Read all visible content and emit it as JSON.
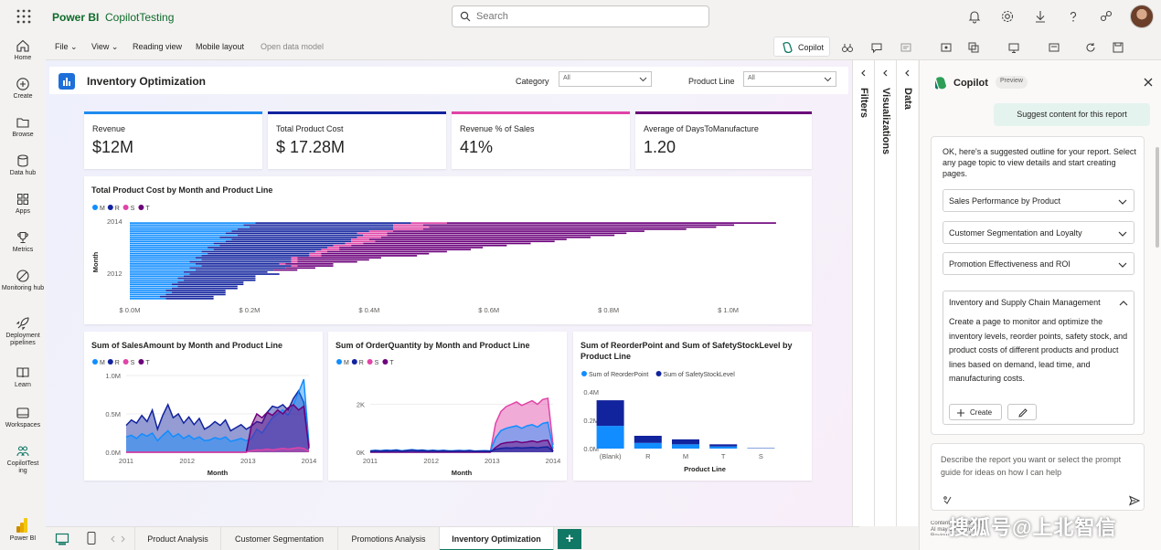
{
  "app": {
    "brand": "Power BI",
    "workspace": "CopilotTesting"
  },
  "search": {
    "placeholder": "Search"
  },
  "top_icons": [
    "bell-icon",
    "gear-icon",
    "download-icon",
    "help-icon",
    "share-icon"
  ],
  "left_rail": [
    {
      "label": "Home",
      "icon": "home-icon"
    },
    {
      "label": "Create",
      "icon": "plus-circle-icon"
    },
    {
      "label": "Browse",
      "icon": "folder-icon"
    },
    {
      "label": "Data hub",
      "icon": "database-icon"
    },
    {
      "label": "Apps",
      "icon": "apps-icon"
    },
    {
      "label": "Metrics",
      "icon": "trophy-icon"
    },
    {
      "label": "Monitoring hub",
      "icon": "monitor-icon"
    },
    {
      "label": "Deployment pipelines",
      "icon": "rocket-icon"
    },
    {
      "label": "Learn",
      "icon": "book-icon"
    },
    {
      "label": "Workspaces",
      "icon": "workspaces-icon"
    },
    {
      "label": "CopilotTesting",
      "icon": "people-icon"
    },
    {
      "label": "Power BI",
      "icon": "powerbi-icon"
    }
  ],
  "ribbon": {
    "file": "File",
    "view": "View",
    "reading_view": "Reading view",
    "mobile_layout": "Mobile layout",
    "open_data_model": "Open data model",
    "copilot": "Copilot"
  },
  "report": {
    "title": "Inventory Optimization",
    "filters": [
      {
        "label": "Category",
        "value": "All"
      },
      {
        "label": "Product Line",
        "value": "All"
      }
    ]
  },
  "cards": [
    {
      "label": "Revenue",
      "value": "$12M",
      "color": "#1e8bf0"
    },
    {
      "label": "Total Product Cost",
      "value": "$ 17.28M",
      "color": "#12239e"
    },
    {
      "label": "Revenue % of Sales",
      "value": "41%",
      "color": "#e044a7"
    },
    {
      "label": "Average of DaysToManufacture",
      "value": "1.20",
      "color": "#6b007b"
    }
  ],
  "colors": {
    "M": "#118dff",
    "R": "#12239e",
    "S": "#e66c37",
    "T": "#6b007b",
    "S_pink": "#e044a7",
    "accent": "#117865"
  },
  "chart_data": [
    {
      "type": "bar",
      "title": "Total Product Cost by Month and Product Line",
      "orientation": "horizontal-stacked",
      "legend": [
        "M",
        "R",
        "S",
        "T"
      ],
      "legend_colors": [
        "#118dff",
        "#12239e",
        "#e044a7",
        "#6b007b"
      ],
      "ylabel": "Month",
      "y_ticks": [
        "2014",
        "2012"
      ],
      "x_ticks": [
        "$ 0.0M",
        "$ 0.2M",
        "$ 0.4M",
        "$ 0.6M",
        "$ 0.8M",
        "$ 1.0M"
      ],
      "xlim": [
        0,
        1.1
      ],
      "note": "values in $M, top row = latest month",
      "series": [
        {
          "name": "M",
          "values": [
            0.21,
            0.19,
            0.2,
            0.18,
            0.17,
            0.16,
            0.18,
            0.15,
            0.17,
            0.16,
            0.14,
            0.15,
            0.13,
            0.14,
            0.12,
            0.13,
            0.12,
            0.11,
            0.12,
            0.1,
            0.11,
            0.12,
            0.1,
            0.11,
            0.09,
            0.1,
            0.09,
            0.08,
            0.09,
            0.08,
            0.07,
            0.08,
            0.07,
            0.06,
            0.07,
            0.06,
            0.05,
            0.06
          ]
        },
        {
          "name": "R",
          "values": [
            0.26,
            0.25,
            0.24,
            0.26,
            0.23,
            0.22,
            0.21,
            0.23,
            0.2,
            0.21,
            0.22,
            0.19,
            0.2,
            0.18,
            0.19,
            0.17,
            0.18,
            0.16,
            0.15,
            0.17,
            0.14,
            0.15,
            0.16,
            0.13,
            0.14,
            0.15,
            0.12,
            0.13,
            0.12,
            0.11,
            0.12,
            0.1,
            0.11,
            0.1,
            0.09,
            0.1,
            0.09,
            0.08
          ]
        },
        {
          "name": "S",
          "values": [
            0.06,
            0.05,
            0.06,
            0.05,
            0.04,
            0.05,
            0.04,
            0.04,
            0.03,
            0.04,
            0.03,
            0.03,
            0.02,
            0.03,
            0.02,
            0.02,
            0.02,
            0.01,
            0.01,
            0.01,
            0.01,
            0.01,
            0,
            0,
            0,
            0,
            0,
            0,
            0,
            0,
            0,
            0,
            0,
            0,
            0,
            0,
            0,
            0
          ]
        },
        {
          "name": "T",
          "values": [
            0.55,
            0.52,
            0.48,
            0.44,
            0.42,
            0.4,
            0.38,
            0.35,
            0.33,
            0.3,
            0.28,
            0.26,
            0.24,
            0.22,
            0.2,
            0.18,
            0.16,
            0.14,
            0.12,
            0.1,
            0.08,
            0.06,
            0.05,
            0.04,
            0,
            0,
            0,
            0,
            0,
            0,
            0,
            0,
            0,
            0,
            0,
            0,
            0,
            0
          ]
        }
      ]
    },
    {
      "type": "area",
      "title": "Sum of SalesAmount by Month and Product Line",
      "legend": [
        "M",
        "R",
        "S",
        "T"
      ],
      "xlabel": "Month",
      "x_ticks": [
        "2011",
        "2012",
        "2013",
        "2014"
      ],
      "y_ticks": [
        "0.0M",
        "0.5M",
        "1.0M"
      ],
      "ylim": [
        0,
        1.0
      ],
      "series": [
        {
          "name": "R",
          "color": "#12239e",
          "values": [
            0.35,
            0.42,
            0.38,
            0.48,
            0.4,
            0.55,
            0.3,
            0.48,
            0.62,
            0.45,
            0.5,
            0.38,
            0.46,
            0.36,
            0.44,
            0.3,
            0.34,
            0.4,
            0.35,
            0.42,
            0.28,
            0.32,
            0.36,
            0.3,
            0.34,
            0.4,
            0.38,
            0.52,
            0.6,
            0.58,
            0.62,
            0.55,
            0.7,
            0.8,
            0.65,
            0.08
          ]
        },
        {
          "name": "M",
          "color": "#118dff",
          "values": [
            0.2,
            0.22,
            0.18,
            0.24,
            0.21,
            0.25,
            0.15,
            0.22,
            0.28,
            0.2,
            0.24,
            0.18,
            0.22,
            0.17,
            0.2,
            0.15,
            0.16,
            0.19,
            0.17,
            0.2,
            0.14,
            0.16,
            0.18,
            0.15,
            0.18,
            0.3,
            0.25,
            0.35,
            0.45,
            0.5,
            0.55,
            0.48,
            0.62,
            0.78,
            0.95,
            0.1
          ]
        },
        {
          "name": "T",
          "color": "#6b007b",
          "values": [
            0,
            0,
            0,
            0,
            0,
            0,
            0,
            0,
            0,
            0,
            0,
            0,
            0,
            0,
            0,
            0,
            0,
            0,
            0,
            0,
            0,
            0,
            0,
            0,
            0.35,
            0.5,
            0.45,
            0.52,
            0.48,
            0.55,
            0.5,
            0.58,
            0.62,
            0.55,
            0.6,
            0.05
          ]
        },
        {
          "name": "S",
          "color": "#e044a7",
          "values": [
            0,
            0,
            0,
            0,
            0,
            0,
            0,
            0,
            0,
            0,
            0,
            0,
            0,
            0,
            0,
            0,
            0,
            0,
            0,
            0,
            0,
            0,
            0,
            0,
            0.02,
            0.03,
            0.03,
            0.04,
            0.03,
            0.04,
            0.05,
            0.04,
            0.05,
            0.06,
            0.05,
            0.01
          ]
        }
      ]
    },
    {
      "type": "area",
      "title": "Sum of OrderQuantity by Month and Product Line",
      "legend": [
        "M",
        "R",
        "S",
        "T"
      ],
      "xlabel": "Month",
      "x_ticks": [
        "2011",
        "2012",
        "2013",
        "2014"
      ],
      "y_ticks": [
        "0K",
        "2K"
      ],
      "ylim": [
        0,
        3200
      ],
      "series": [
        {
          "name": "S",
          "color": "#e044a7",
          "values": [
            30,
            40,
            35,
            45,
            40,
            50,
            35,
            45,
            55,
            40,
            48,
            36,
            44,
            34,
            42,
            30,
            32,
            38,
            34,
            40,
            28,
            30,
            34,
            28,
            1200,
            1700,
            1900,
            2000,
            2100,
            1950,
            2050,
            2150,
            2000,
            2200,
            2250,
            300
          ]
        },
        {
          "name": "M",
          "color": "#118dff",
          "values": [
            60,
            80,
            70,
            90,
            75,
            100,
            60,
            85,
            110,
            80,
            95,
            70,
            85,
            65,
            80,
            60,
            65,
            75,
            65,
            80,
            55,
            60,
            70,
            55,
            600,
            900,
            1000,
            1050,
            1100,
            1000,
            1100,
            1150,
            1050,
            1200,
            1250,
            150
          ]
        },
        {
          "name": "T",
          "color": "#6b007b",
          "values": [
            0,
            0,
            0,
            0,
            0,
            0,
            0,
            0,
            0,
            0,
            0,
            0,
            0,
            0,
            0,
            0,
            0,
            0,
            0,
            0,
            0,
            0,
            0,
            0,
            200,
            350,
            400,
            420,
            450,
            400,
            430,
            470,
            420,
            480,
            500,
            40
          ]
        },
        {
          "name": "R",
          "color": "#12239e",
          "values": [
            50,
            65,
            55,
            70,
            60,
            80,
            45,
            70,
            90,
            65,
            75,
            55,
            70,
            50,
            65,
            45,
            50,
            60,
            50,
            65,
            40,
            45,
            55,
            45,
            120,
            160,
            180,
            170,
            190,
            175,
            185,
            200,
            180,
            210,
            220,
            30
          ]
        }
      ]
    },
    {
      "type": "bar",
      "title": "Sum of ReorderPoint and Sum of SafetyStockLevel by Product Line",
      "legend": [
        "Sum of ReorderPoint",
        "Sum of SafetyStockLevel"
      ],
      "legend_colors": [
        "#118dff",
        "#12239e"
      ],
      "categories": [
        "(Blank)",
        "R",
        "M",
        "T",
        "S"
      ],
      "xlabel": "Product Line",
      "y_ticks": [
        "0.0M",
        "0.2M",
        "0.4M"
      ],
      "ylim": [
        0,
        0.45
      ],
      "series": [
        {
          "name": "Sum of ReorderPoint",
          "values": [
            0.16,
            0.04,
            0.03,
            0.015,
            0.002
          ]
        },
        {
          "name": "Sum of SafetyStockLevel",
          "values": [
            0.18,
            0.05,
            0.035,
            0.015,
            0.002
          ]
        }
      ]
    }
  ],
  "copilot": {
    "title": "Copilot",
    "badge": "Preview",
    "suggest": "Suggest content for this report",
    "intro": "OK, here's a suggested outline for your report. Select any page topic to view details and start creating pages.",
    "topics": [
      "Sales Performance by Product",
      "Customer Segmentation and Loyalty",
      "Promotion Effectiveness and ROI"
    ],
    "expanded_title": "Inventory and Supply Chain Management",
    "expanded_desc": "Create a page to monitor and optimize the inventory levels, reorder points, safety stock, and product costs of different products and product lines based on demand, lead time, and manufacturing costs.",
    "create": "Create",
    "input_placeholder": "Describe the report you want or select the prompt guide for ideas on how I can help",
    "footer": "Content generated by AI may be incorrect. Review it carefully."
  },
  "panes": {
    "filters": "Filters",
    "visualizations": "Visualizations",
    "data": "Data"
  },
  "tabs": [
    "Product Analysis",
    "Customer Segmentation",
    "Promotions Analysis",
    "Inventory Optimization"
  ],
  "active_tab": "Inventory Optimization",
  "watermark": "搜狐号@上北智信"
}
